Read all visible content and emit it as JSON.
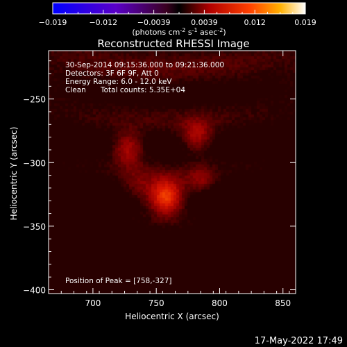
{
  "chart_data": {
    "type": "heatmap",
    "title": "Reconstructed RHESSI Image",
    "xlabel": "Heliocentric X (arcsec)",
    "ylabel": "Heliocentric Y (arcsec)",
    "xlim": [
      665,
      860
    ],
    "ylim": [
      -403,
      -212
    ],
    "x_ticks": [
      700,
      750,
      800,
      850
    ],
    "y_ticks": [
      -250,
      -300,
      -350,
      -400
    ],
    "colorbar": {
      "min": -0.019,
      "max": 0.019,
      "ticks": [
        "-0.019",
        "-0.012",
        "-0.0039",
        "0.0039",
        "0.012",
        "0.019"
      ],
      "unit_parts": [
        "(photons cm",
        "-2",
        " s",
        "-1",
        " asec",
        "-2",
        ")"
      ]
    },
    "annotations": {
      "line1": "30-Sep-2014 09:15:36.000 to 09:21:36.000",
      "line2": "Detectors: 3F 6F 9F, Att 0",
      "line3": "Energy Range: 6.0 - 12.0 keV",
      "line4a": "Clean",
      "line4b": "Total counts: 5.35E+04",
      "peak": "Position of Peak = [758,-327]"
    },
    "peak": {
      "x": 758,
      "y": -327
    },
    "sources": [
      {
        "x": 758,
        "y": -327,
        "amp": 1.0,
        "sigma": 10
      },
      {
        "x": 728,
        "y": -289,
        "amp": 0.55,
        "sigma": 9
      },
      {
        "x": 782,
        "y": -280,
        "amp": 0.5,
        "sigma": 9
      },
      {
        "x": 785,
        "y": -315,
        "amp": 0.35,
        "sigma": 8
      },
      {
        "x": 735,
        "y": -320,
        "amp": 0.3,
        "sigma": 10
      }
    ],
    "timestamp": "17-May-2022 17:49"
  }
}
